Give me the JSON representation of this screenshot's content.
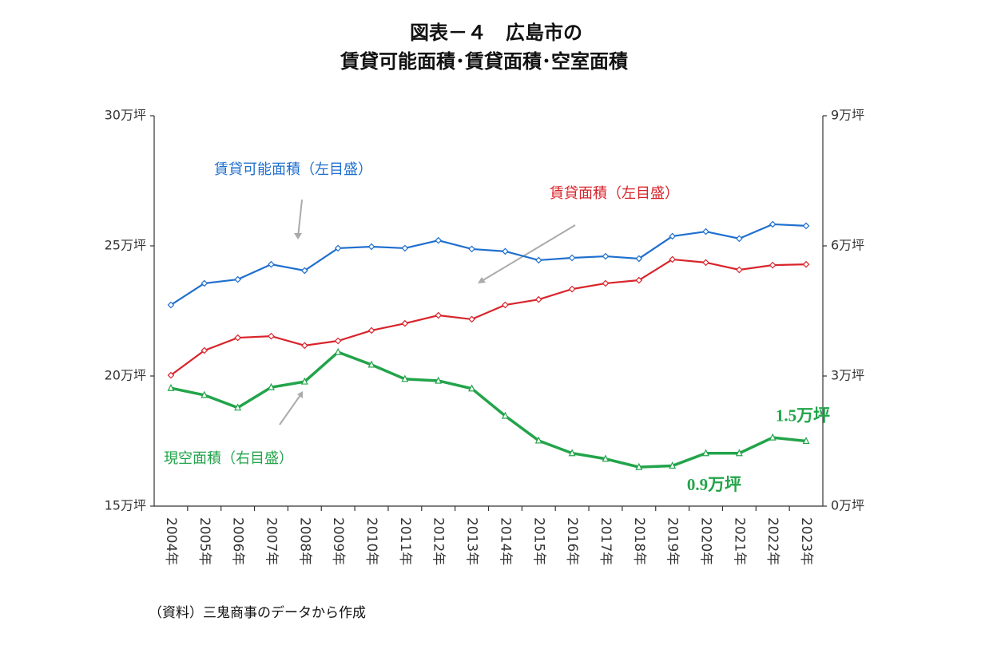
{
  "chart_data": {
    "type": "line",
    "title": "図表－４　広島市の",
    "subtitle": "賃貸可能面積･賃貸面積･空室面積",
    "source": "（資料）三鬼商事のデータから作成",
    "categories": [
      "2004年",
      "2005年",
      "2006年",
      "2007年",
      "2008年",
      "2009年",
      "2010年",
      "2011年",
      "2012年",
      "2013年",
      "2014年",
      "2015年",
      "2016年",
      "2017年",
      "2018年",
      "2019年",
      "2020年",
      "2021年",
      "2022年",
      "2023年"
    ],
    "series": [
      {
        "name": "賃貸可能面積（左目盛）",
        "color": "#1f6fce",
        "marker": "diamond",
        "values": [
          22.73,
          23.56,
          23.71,
          24.29,
          24.05,
          24.91,
          24.97,
          24.91,
          25.21,
          24.88,
          24.79,
          24.45,
          24.54,
          24.6,
          24.51,
          25.37,
          25.55,
          25.28,
          25.83,
          25.77
        ]
      },
      {
        "name": "賃貸面積（左目盛）",
        "color": "#d9242b",
        "marker": "diamond",
        "values": [
          20.03,
          20.98,
          21.47,
          21.53,
          21.17,
          21.35,
          21.75,
          22.02,
          22.33,
          22.18,
          22.73,
          22.94,
          23.34,
          23.56,
          23.68,
          24.48,
          24.36,
          24.08,
          24.26,
          24.29
        ]
      },
      {
        "name": "現空面積（右目盛）",
        "color": "#22a44a",
        "marker": "triangle",
        "axis": "y2",
        "values": [
          2.72,
          2.56,
          2.27,
          2.74,
          2.87,
          3.55,
          3.26,
          2.93,
          2.89,
          2.71,
          2.08,
          1.51,
          1.22,
          1.09,
          0.9,
          0.93,
          1.22,
          1.22,
          1.58,
          1.5
        ],
        "value_labels": [
          null,
          null,
          null,
          null,
          null,
          null,
          null,
          null,
          null,
          null,
          null,
          null,
          null,
          null,
          "0.9万坪",
          null,
          null,
          null,
          null,
          "1.5万坪"
        ]
      }
    ],
    "ylim": [
      15,
      30
    ],
    "yticks": [
      {
        "value": 15,
        "label": "15万坪"
      },
      {
        "value": 20,
        "label": "20万坪"
      },
      {
        "value": 25,
        "label": "25万坪"
      },
      {
        "value": 30,
        "label": "30万坪"
      }
    ],
    "y2lim": [
      0,
      9
    ],
    "y2ticks": [
      {
        "value": 0,
        "label": "0万坪"
      },
      {
        "value": 3,
        "label": "3万坪"
      },
      {
        "value": 6,
        "label": "6万坪"
      },
      {
        "value": 9,
        "label": "9万坪"
      }
    ],
    "grid": false
  }
}
